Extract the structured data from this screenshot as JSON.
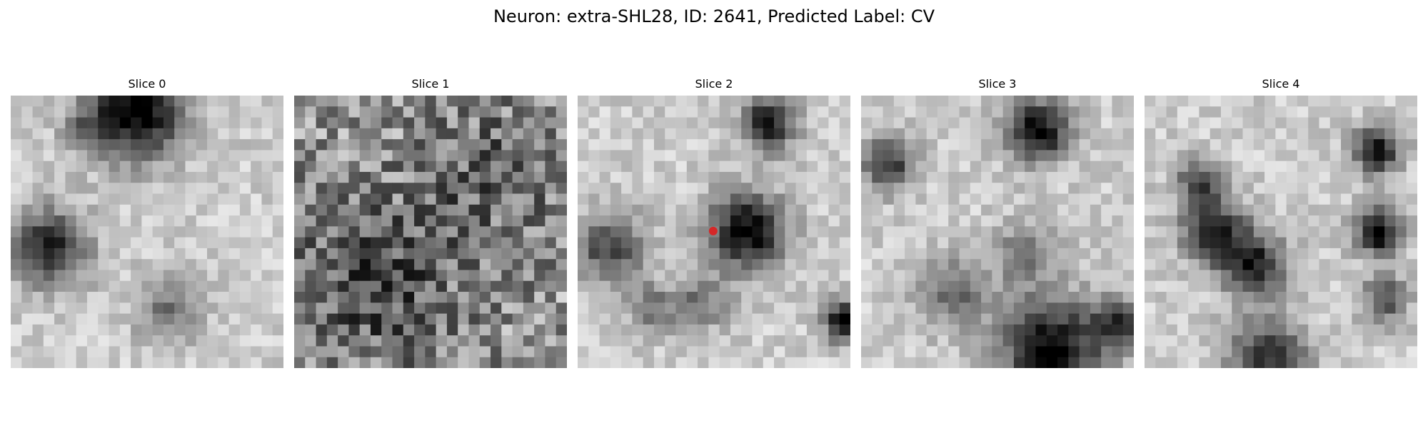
{
  "figure": {
    "title": "Neuron: extra-SHL28, ID: 2641, Predicted Label: CV"
  },
  "slices": [
    {
      "title": "Slice 0",
      "seed": 11,
      "blobs": [
        [
          0.46,
          0.06,
          0.12,
          0.85
        ],
        [
          0.14,
          0.56,
          0.1,
          0.65
        ],
        [
          0.58,
          0.8,
          0.08,
          0.35
        ],
        [
          0.28,
          0.12,
          0.06,
          0.25
        ]
      ]
    },
    {
      "title": "Slice 1",
      "seed": 23,
      "blobs": [
        [
          0.3,
          0.7,
          0.2,
          0.3
        ],
        [
          0.7,
          0.3,
          0.18,
          0.2
        ]
      ]
    },
    {
      "title": "Slice 2",
      "seed": 37,
      "blobs": [
        [
          0.62,
          0.5,
          0.1,
          0.8
        ],
        [
          0.7,
          0.1,
          0.07,
          0.7
        ],
        [
          0.98,
          0.83,
          0.05,
          0.85
        ],
        [
          0.12,
          0.56,
          0.09,
          0.55
        ],
        [
          0.45,
          0.76,
          0.07,
          0.35
        ],
        [
          0.27,
          0.78,
          0.06,
          0.35
        ]
      ]
    },
    {
      "title": "Slice 3",
      "seed": 53,
      "blobs": [
        [
          0.65,
          0.13,
          0.08,
          0.8
        ],
        [
          0.1,
          0.25,
          0.07,
          0.6
        ],
        [
          0.7,
          0.93,
          0.13,
          0.8
        ],
        [
          0.94,
          0.84,
          0.06,
          0.55
        ],
        [
          0.33,
          0.72,
          0.09,
          0.4
        ],
        [
          0.6,
          0.58,
          0.08,
          0.35
        ]
      ]
    },
    {
      "title": "Slice 4",
      "seed": 71,
      "blobs": [
        [
          0.25,
          0.5,
          0.08,
          0.7
        ],
        [
          0.4,
          0.62,
          0.08,
          0.7
        ],
        [
          0.2,
          0.32,
          0.06,
          0.5
        ],
        [
          0.85,
          0.2,
          0.06,
          0.75
        ],
        [
          0.86,
          0.5,
          0.06,
          0.8
        ],
        [
          0.88,
          0.75,
          0.06,
          0.5
        ],
        [
          0.45,
          0.96,
          0.1,
          0.6
        ]
      ]
    }
  ],
  "marker": {
    "slice_index": 2,
    "x": 0.497,
    "y": 0.497,
    "color": "#d62728"
  }
}
